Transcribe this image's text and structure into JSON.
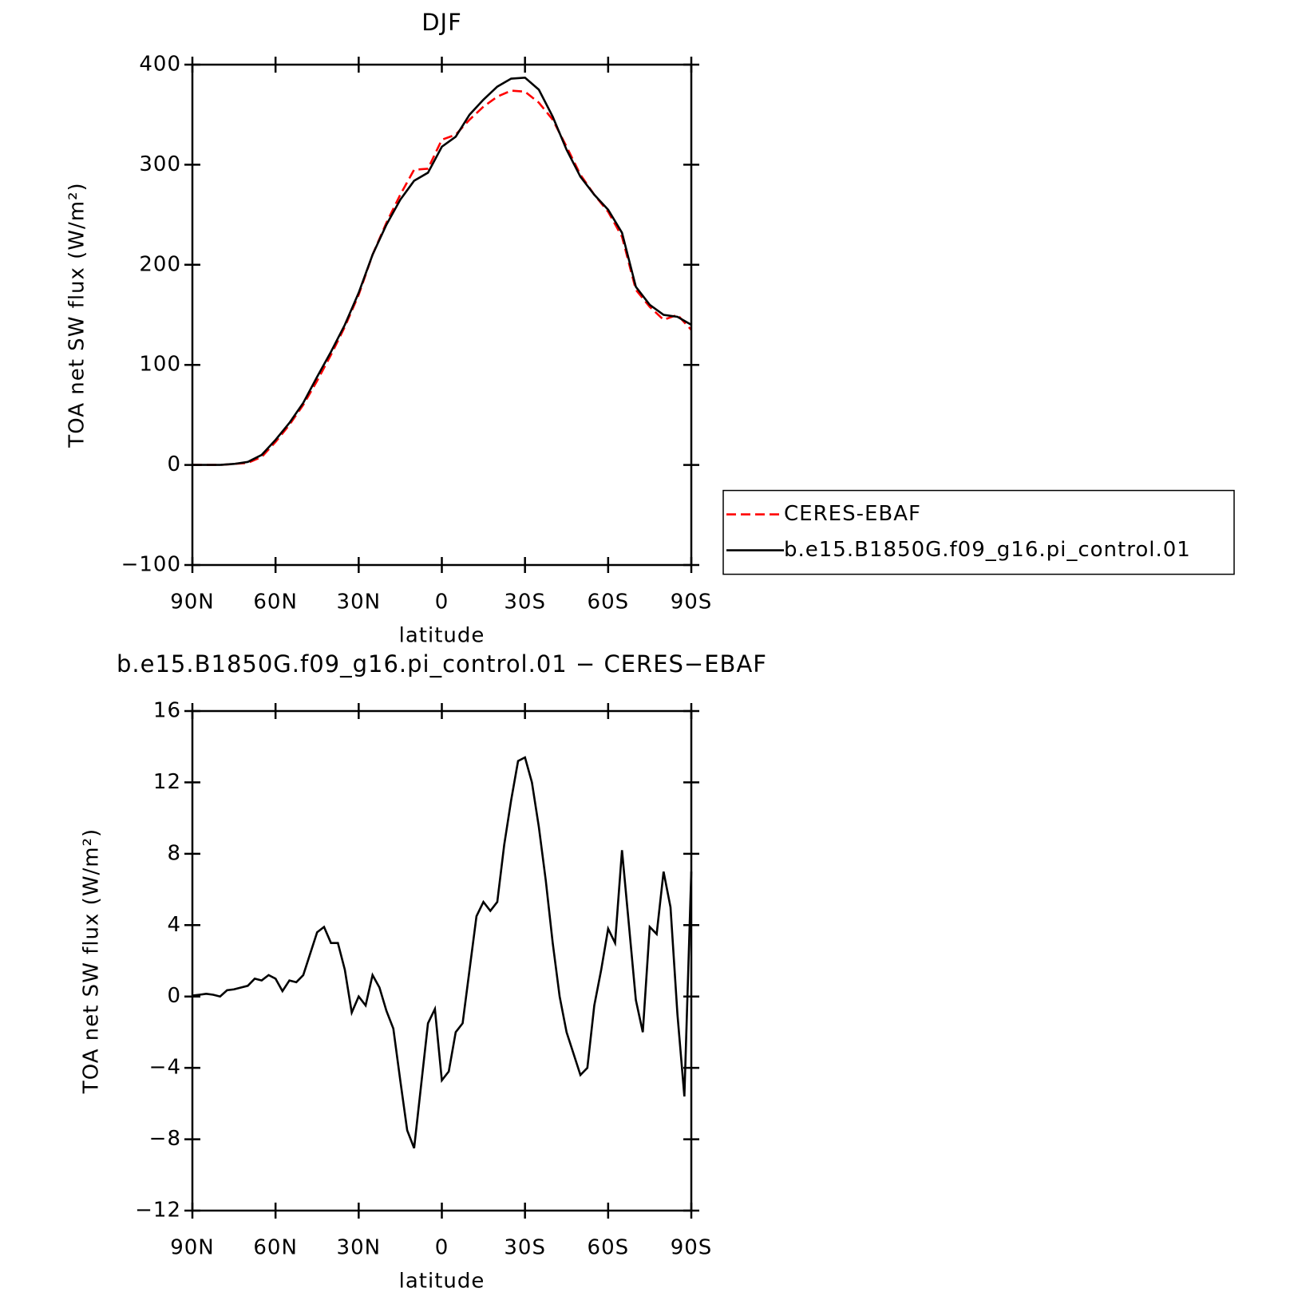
{
  "chart_data": [
    {
      "type": "line",
      "title": "DJF",
      "xlabel": "latitude",
      "ylabel": "TOA net SW flux (W/m²)",
      "x": [
        90,
        85,
        80,
        75,
        70,
        65,
        60,
        55,
        50,
        45,
        40,
        35,
        30,
        25,
        20,
        15,
        10,
        5,
        0,
        -5,
        -10,
        -15,
        -20,
        -25,
        -30,
        -35,
        -40,
        -45,
        -50,
        -55,
        -60,
        -65,
        -70,
        -75,
        -80,
        -85,
        -90
      ],
      "series": [
        {
          "name": "CERES-EBAF",
          "color": "#ff0000",
          "dashed": true,
          "values": [
            0,
            0,
            0,
            1,
            2,
            8,
            23,
            40,
            60,
            84,
            110,
            138,
            170,
            210,
            242,
            270,
            295,
            296,
            325,
            330,
            345,
            358,
            368,
            374,
            373,
            362,
            345,
            318,
            290,
            270,
            253,
            228,
            175,
            158,
            145,
            150,
            135
          ]
        },
        {
          "name": "b.e15.B1850G.f09_g16.pi_control.01",
          "color": "#000000",
          "dashed": false,
          "values": [
            0,
            0,
            0,
            1,
            3,
            10,
            25,
            42,
            62,
            88,
            113,
            140,
            172,
            210,
            240,
            265,
            284,
            292,
            318,
            328,
            350,
            365,
            378,
            386,
            387,
            375,
            348,
            315,
            288,
            270,
            255,
            232,
            178,
            160,
            150,
            148,
            140
          ]
        }
      ],
      "xlim": [
        90,
        -90
      ],
      "xticks": [
        {
          "value": 90,
          "label": "90N"
        },
        {
          "value": 60,
          "label": "60N"
        },
        {
          "value": 30,
          "label": "30N"
        },
        0,
        {
          "value": -30,
          "label": "30S"
        },
        {
          "value": -60,
          "label": "60S"
        },
        {
          "value": -90,
          "label": "90S"
        }
      ],
      "ylim": [
        -100,
        400
      ],
      "yticks": [
        {
          "value": -100,
          "label": "−100"
        },
        0,
        100,
        200,
        300,
        400
      ],
      "legend": "right"
    },
    {
      "type": "line",
      "title": "b.e15.B1850G.f09_g16.pi_control.01 − CERES−EBAF",
      "xlabel": "latitude",
      "ylabel": "TOA net SW flux (W/m²)",
      "x": [
        90,
        87.5,
        85,
        82.5,
        80,
        77.5,
        75,
        72.5,
        70,
        67.5,
        65,
        62.5,
        60,
        57.5,
        55,
        52.5,
        50,
        47.5,
        45,
        42.5,
        40,
        37.5,
        35,
        32.5,
        30,
        27.5,
        25,
        22.5,
        20,
        17.5,
        15,
        12.5,
        10,
        7.5,
        5,
        2.5,
        0,
        -2.5,
        -5,
        -7.5,
        -10,
        -12.5,
        -15,
        -17.5,
        -20,
        -22.5,
        -25,
        -27.5,
        -30,
        -32.5,
        -35,
        -37.5,
        -40,
        -42.5,
        -45,
        -47.5,
        -50,
        -52.5,
        -55,
        -57.5,
        -60,
        -62.5,
        -65,
        -67.5,
        -70,
        -72.5,
        -75,
        -77.5,
        -80,
        -82.5,
        -85,
        -87.5,
        -90
      ],
      "values": [
        0.05,
        0.1,
        0.15,
        0.1,
        0.0,
        0.35,
        0.4,
        0.5,
        0.6,
        1.0,
        0.9,
        1.2,
        1.0,
        0.3,
        0.9,
        0.8,
        1.2,
        2.4,
        3.6,
        3.9,
        3.0,
        3.0,
        1.5,
        -0.9,
        0.0,
        -0.5,
        1.2,
        0.5,
        -0.8,
        -1.8,
        -4.7,
        -7.5,
        -8.5,
        -5.0,
        -1.5,
        -0.7,
        -4.7,
        -4.2,
        -2.0,
        -1.5,
        1.5,
        4.5,
        5.3,
        4.8,
        5.3,
        8.5,
        11.0,
        13.2,
        13.4,
        12.0,
        9.5,
        6.5,
        3.0,
        0.0,
        -2.0,
        -3.2,
        -4.4,
        -4.0,
        -0.5,
        1.5,
        3.8,
        3.0,
        8.2,
        4.0,
        -0.2,
        -2.0,
        3.9,
        3.5,
        7.0,
        5.0,
        -1.0,
        -5.6,
        7.0
      ],
      "color": "#000000",
      "xlim": [
        90,
        -90
      ],
      "xticks": [
        {
          "value": 90,
          "label": "90N"
        },
        {
          "value": 60,
          "label": "60N"
        },
        {
          "value": 30,
          "label": "30N"
        },
        0,
        {
          "value": -30,
          "label": "30S"
        },
        {
          "value": -60,
          "label": "60S"
        },
        {
          "value": -90,
          "label": "90S"
        }
      ],
      "ylim": [
        -12,
        16
      ],
      "yticks": [
        {
          "value": -12,
          "label": "−12"
        },
        {
          "value": -8,
          "label": "−8"
        },
        {
          "value": -4,
          "label": "−4"
        },
        0,
        4,
        8,
        12,
        16
      ]
    }
  ]
}
